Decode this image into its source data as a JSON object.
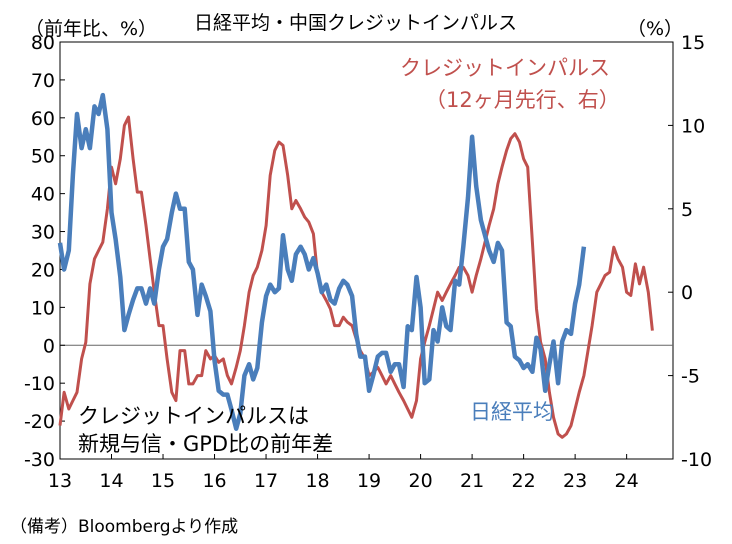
{
  "chart_data": {
    "type": "line",
    "title": "日経平均・中国クレジットインパルス",
    "left_axis_label": "（前年比、%）",
    "right_axis_label": "（%）",
    "x_tick_labels": [
      "13",
      "14",
      "15",
      "16",
      "17",
      "18",
      "19",
      "20",
      "21",
      "22",
      "23",
      "24"
    ],
    "x_range": [
      2013.0,
      2024.9
    ],
    "y_left": {
      "min": -30,
      "max": 80,
      "ticks": [
        80,
        70,
        60,
        50,
        40,
        30,
        20,
        10,
        0,
        -10,
        -20,
        -30
      ]
    },
    "y_right": {
      "min": -10,
      "max": 15,
      "ticks": [
        15,
        10,
        5,
        0,
        -5,
        -10
      ]
    },
    "grid": false,
    "zero_line": true,
    "note_line1": "クレジットインパルスは",
    "note_line2": "新規与信・GPD比の前年差",
    "source": "（備考）Bloombergより作成",
    "series": [
      {
        "name": "日経平均",
        "axis": "left",
        "color": "#4a7ebb",
        "points": [
          [
            2013.0,
            27
          ],
          [
            2013.08,
            20
          ],
          [
            2013.17,
            25
          ],
          [
            2013.25,
            45
          ],
          [
            2013.33,
            61
          ],
          [
            2013.42,
            52
          ],
          [
            2013.5,
            57
          ],
          [
            2013.58,
            52
          ],
          [
            2013.67,
            63
          ],
          [
            2013.75,
            61
          ],
          [
            2013.83,
            66
          ],
          [
            2013.92,
            57
          ],
          [
            2014.0,
            35
          ],
          [
            2014.08,
            28
          ],
          [
            2014.17,
            18
          ],
          [
            2014.25,
            4
          ],
          [
            2014.33,
            8
          ],
          [
            2014.42,
            12
          ],
          [
            2014.5,
            15
          ],
          [
            2014.58,
            15
          ],
          [
            2014.67,
            11
          ],
          [
            2014.75,
            15
          ],
          [
            2014.83,
            11
          ],
          [
            2014.92,
            20
          ],
          [
            2015.0,
            26
          ],
          [
            2015.08,
            28
          ],
          [
            2015.17,
            35
          ],
          [
            2015.25,
            40
          ],
          [
            2015.33,
            36
          ],
          [
            2015.42,
            36
          ],
          [
            2015.5,
            22
          ],
          [
            2015.58,
            20
          ],
          [
            2015.67,
            8
          ],
          [
            2015.75,
            16
          ],
          [
            2015.83,
            13
          ],
          [
            2015.92,
            9
          ],
          [
            2016.0,
            -4
          ],
          [
            2016.08,
            -12
          ],
          [
            2016.17,
            -13
          ],
          [
            2016.25,
            -13
          ],
          [
            2016.33,
            -17
          ],
          [
            2016.42,
            -22
          ],
          [
            2016.5,
            -18
          ],
          [
            2016.58,
            -8
          ],
          [
            2016.67,
            -5
          ],
          [
            2016.75,
            -9
          ],
          [
            2016.83,
            -6
          ],
          [
            2016.92,
            6
          ],
          [
            2017.0,
            13
          ],
          [
            2017.08,
            16
          ],
          [
            2017.17,
            14
          ],
          [
            2017.25,
            15
          ],
          [
            2017.33,
            29
          ],
          [
            2017.42,
            20
          ],
          [
            2017.5,
            17
          ],
          [
            2017.58,
            24
          ],
          [
            2017.67,
            26
          ],
          [
            2017.75,
            24
          ],
          [
            2017.83,
            20
          ],
          [
            2017.92,
            23
          ],
          [
            2018.0,
            19
          ],
          [
            2018.08,
            14
          ],
          [
            2018.17,
            16
          ],
          [
            2018.25,
            12
          ],
          [
            2018.33,
            11
          ],
          [
            2018.42,
            15
          ],
          [
            2018.5,
            17
          ],
          [
            2018.58,
            16
          ],
          [
            2018.67,
            13
          ],
          [
            2018.75,
            3
          ],
          [
            2018.83,
            -3
          ],
          [
            2018.92,
            -3
          ],
          [
            2019.0,
            -12
          ],
          [
            2019.08,
            -8
          ],
          [
            2019.17,
            -3
          ],
          [
            2019.25,
            -2
          ],
          [
            2019.33,
            -2
          ],
          [
            2019.42,
            -7
          ],
          [
            2019.5,
            -5
          ],
          [
            2019.58,
            -5
          ],
          [
            2019.67,
            -11
          ],
          [
            2019.75,
            5
          ],
          [
            2019.83,
            4
          ],
          [
            2019.92,
            18
          ],
          [
            2020.0,
            10
          ],
          [
            2020.08,
            -10
          ],
          [
            2020.17,
            -9
          ],
          [
            2020.25,
            4
          ],
          [
            2020.33,
            1
          ],
          [
            2020.42,
            10
          ],
          [
            2020.5,
            5
          ],
          [
            2020.58,
            4
          ],
          [
            2020.67,
            17
          ],
          [
            2020.75,
            16
          ],
          [
            2020.83,
            26
          ],
          [
            2020.92,
            39
          ],
          [
            2021.0,
            55
          ],
          [
            2021.08,
            42
          ],
          [
            2021.17,
            33
          ],
          [
            2021.25,
            29
          ],
          [
            2021.33,
            25
          ],
          [
            2021.42,
            22
          ],
          [
            2021.5,
            27
          ],
          [
            2021.58,
            25
          ],
          [
            2021.67,
            6
          ],
          [
            2021.75,
            5
          ],
          [
            2021.83,
            -3
          ],
          [
            2021.92,
            -4
          ],
          [
            2022.0,
            -6
          ],
          [
            2022.08,
            -5
          ],
          [
            2022.17,
            -7
          ],
          [
            2022.25,
            2
          ],
          [
            2022.33,
            -1
          ],
          [
            2022.42,
            -12
          ],
          [
            2022.5,
            -5
          ],
          [
            2022.58,
            1
          ],
          [
            2022.67,
            -10
          ],
          [
            2022.75,
            1
          ],
          [
            2022.83,
            4
          ],
          [
            2022.92,
            3
          ],
          [
            2023.0,
            11
          ],
          [
            2023.08,
            16
          ],
          [
            2023.17,
            26
          ]
        ]
      },
      {
        "name": "クレジットインパルス",
        "name_line2": "（12ヶ月先行、右）",
        "axis": "right",
        "color": "#c0504d",
        "points": [
          [
            2013.0,
            -8
          ],
          [
            2013.08,
            -6
          ],
          [
            2013.17,
            -7
          ],
          [
            2013.25,
            -6.5
          ],
          [
            2013.33,
            -6
          ],
          [
            2013.42,
            -4
          ],
          [
            2013.5,
            -3
          ],
          [
            2013.58,
            0.5
          ],
          [
            2013.67,
            2
          ],
          [
            2013.75,
            2.5
          ],
          [
            2013.83,
            3
          ],
          [
            2013.92,
            5
          ],
          [
            2014.0,
            7.5
          ],
          [
            2014.08,
            6.5
          ],
          [
            2014.17,
            8
          ],
          [
            2014.25,
            10
          ],
          [
            2014.33,
            10.5
          ],
          [
            2014.42,
            8
          ],
          [
            2014.5,
            6
          ],
          [
            2014.58,
            6
          ],
          [
            2014.67,
            4
          ],
          [
            2014.75,
            2
          ],
          [
            2014.83,
            0
          ],
          [
            2014.92,
            -2
          ],
          [
            2015.0,
            -2
          ],
          [
            2015.08,
            -4
          ],
          [
            2015.17,
            -6
          ],
          [
            2015.25,
            -6.5
          ],
          [
            2015.33,
            -3.5
          ],
          [
            2015.42,
            -3.5
          ],
          [
            2015.5,
            -5.5
          ],
          [
            2015.58,
            -5.5
          ],
          [
            2015.67,
            -5
          ],
          [
            2015.75,
            -5
          ],
          [
            2015.83,
            -3.5
          ],
          [
            2015.92,
            -4
          ],
          [
            2016.0,
            -3.8
          ],
          [
            2016.08,
            -4.2
          ],
          [
            2016.17,
            -4
          ],
          [
            2016.25,
            -5
          ],
          [
            2016.33,
            -5.5
          ],
          [
            2016.42,
            -4.5
          ],
          [
            2016.5,
            -3.5
          ],
          [
            2016.58,
            -2
          ],
          [
            2016.67,
            0
          ],
          [
            2016.75,
            1
          ],
          [
            2016.83,
            1.5
          ],
          [
            2016.92,
            2.5
          ],
          [
            2017.0,
            4
          ],
          [
            2017.08,
            7
          ],
          [
            2017.17,
            8.5
          ],
          [
            2017.25,
            9
          ],
          [
            2017.33,
            8.8
          ],
          [
            2017.42,
            7
          ],
          [
            2017.5,
            5
          ],
          [
            2017.58,
            5.5
          ],
          [
            2017.67,
            5
          ],
          [
            2017.75,
            4.5
          ],
          [
            2017.83,
            4.2
          ],
          [
            2017.92,
            3.5
          ],
          [
            2018.0,
            1
          ],
          [
            2018.08,
            0
          ],
          [
            2018.17,
            -0.5
          ],
          [
            2018.25,
            -1
          ],
          [
            2018.33,
            -2
          ],
          [
            2018.42,
            -2
          ],
          [
            2018.5,
            -1.5
          ],
          [
            2018.58,
            -1.8
          ],
          [
            2018.67,
            -2
          ],
          [
            2018.75,
            -2.8
          ],
          [
            2018.83,
            -3.5
          ],
          [
            2018.92,
            -4
          ],
          [
            2019.0,
            -5
          ],
          [
            2019.08,
            -4.8
          ],
          [
            2019.17,
            -4.5
          ],
          [
            2019.25,
            -5
          ],
          [
            2019.33,
            -5.5
          ],
          [
            2019.42,
            -5
          ],
          [
            2019.5,
            -5.5
          ],
          [
            2019.58,
            -6
          ],
          [
            2019.67,
            -6.5
          ],
          [
            2019.75,
            -7
          ],
          [
            2019.83,
            -7.5
          ],
          [
            2019.92,
            -6.5
          ],
          [
            2020.0,
            -4
          ],
          [
            2020.08,
            -3
          ],
          [
            2020.17,
            -2
          ],
          [
            2020.25,
            -1
          ],
          [
            2020.33,
            0
          ],
          [
            2020.42,
            -0.5
          ],
          [
            2020.5,
            0
          ],
          [
            2020.58,
            0.5
          ],
          [
            2020.67,
            1
          ],
          [
            2020.75,
            1.5
          ],
          [
            2020.83,
            1.5
          ],
          [
            2020.92,
            1
          ],
          [
            2021.0,
            0
          ],
          [
            2021.08,
            1
          ],
          [
            2021.17,
            2
          ],
          [
            2021.25,
            3
          ],
          [
            2021.33,
            4
          ],
          [
            2021.42,
            5
          ],
          [
            2021.5,
            6.5
          ],
          [
            2021.58,
            7.5
          ],
          [
            2021.67,
            8.5
          ],
          [
            2021.75,
            9.2
          ],
          [
            2021.83,
            9.5
          ],
          [
            2021.92,
            9
          ],
          [
            2022.0,
            8
          ],
          [
            2022.08,
            7.5
          ],
          [
            2022.17,
            3
          ],
          [
            2022.25,
            -1
          ],
          [
            2022.33,
            -3
          ],
          [
            2022.42,
            -4
          ],
          [
            2022.5,
            -6
          ],
          [
            2022.58,
            -7.5
          ],
          [
            2022.67,
            -8.5
          ],
          [
            2022.75,
            -8.7
          ],
          [
            2022.83,
            -8.5
          ],
          [
            2022.92,
            -8
          ],
          [
            2023.0,
            -7
          ],
          [
            2023.08,
            -6
          ],
          [
            2023.17,
            -5
          ],
          [
            2023.25,
            -3.5
          ],
          [
            2023.33,
            -2
          ],
          [
            2023.42,
            0
          ],
          [
            2023.5,
            0.5
          ],
          [
            2023.58,
            1
          ],
          [
            2023.67,
            1.2
          ],
          [
            2023.75,
            2.7
          ],
          [
            2023.83,
            2
          ],
          [
            2023.92,
            1.5
          ],
          [
            2024.0,
            0
          ],
          [
            2024.08,
            -0.2
          ],
          [
            2024.17,
            1.7
          ],
          [
            2024.25,
            0.5
          ],
          [
            2024.33,
            1.5
          ],
          [
            2024.42,
            0
          ],
          [
            2024.5,
            -2.3
          ]
        ]
      }
    ]
  }
}
